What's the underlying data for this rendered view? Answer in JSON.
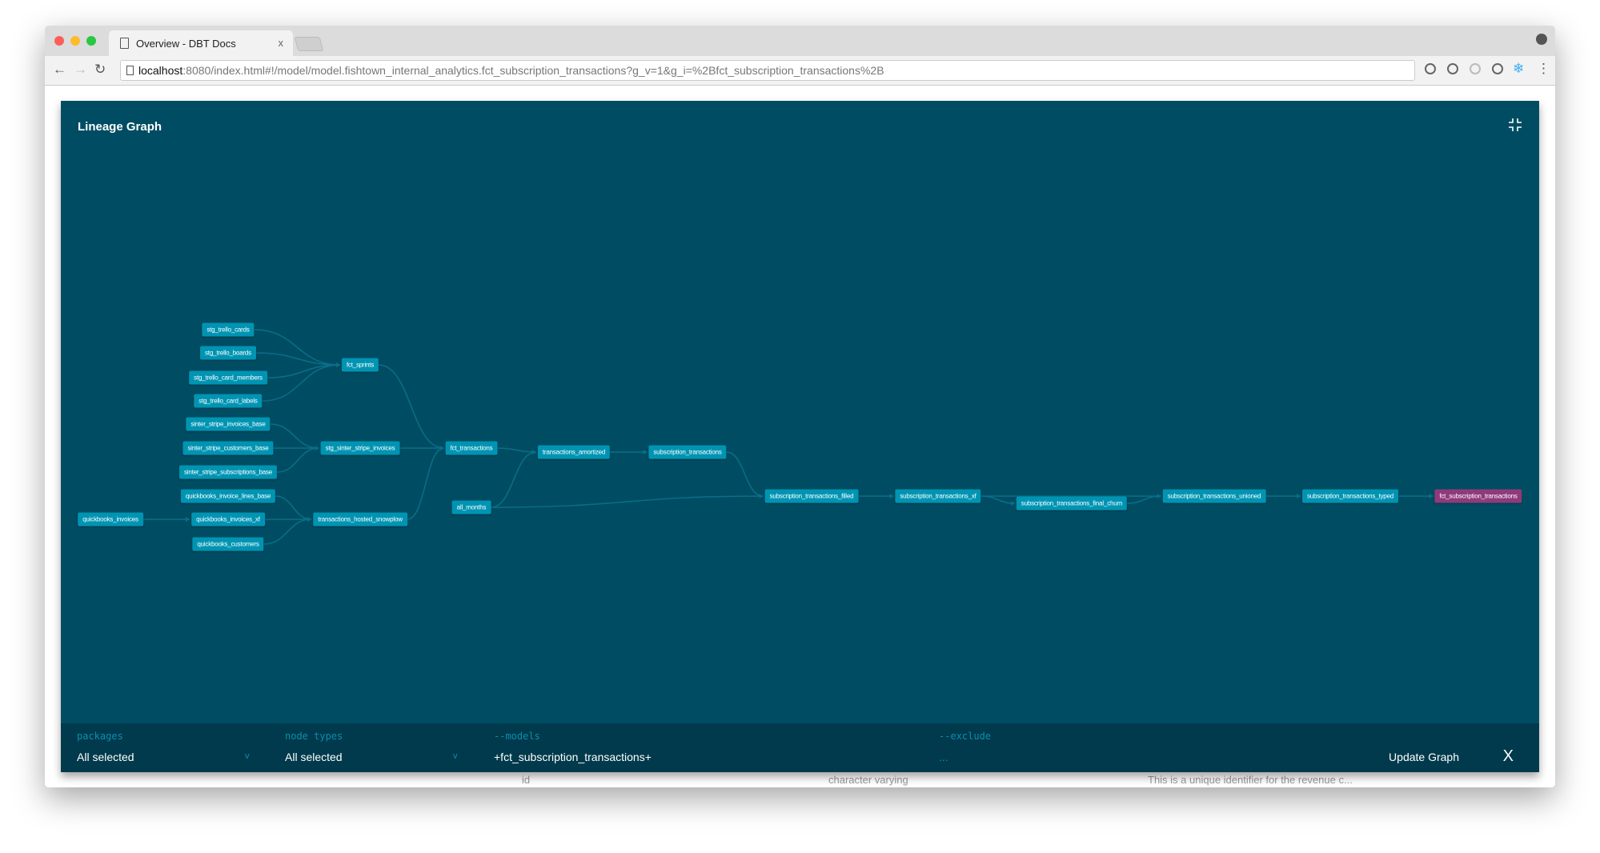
{
  "browser": {
    "tab_title": "Overview - DBT Docs",
    "tab_close": "x",
    "url_host": "localhost",
    "url_rest": ":8080/index.html#!/model/model.fishtown_internal_analytics.fct_subscription_transactions?g_v=1&g_i=%2Bfct_subscription_transactions%2B"
  },
  "background_row": {
    "name": "id",
    "type": "character varying",
    "description": "This is a unique identifier for the revenue c..."
  },
  "modal": {
    "title": "Lineage Graph"
  },
  "graph": {
    "colors": {
      "background": "#004d63",
      "node": "#0094b3",
      "selected_node": "#8f3a7a",
      "edge": "#0b6e88"
    },
    "selected": "fct_subscription_transactions",
    "nodes": [
      "stg_trello_cards",
      "stg_trello_boards",
      "stg_trello_card_members",
      "stg_trello_card_labels",
      "sinter_stripe_invoices_base",
      "sinter_stripe_customers_base",
      "sinter_stripe_subscriptions_base",
      "quickbooks_invoice_lines_base",
      "quickbooks_invoices_xf",
      "quickbooks_customers",
      "quickbooks_invoices",
      "fct_sprints",
      "stg_sinter_stripe_invoices",
      "transactions_hosted_snowplow",
      "fct_transactions",
      "all_months",
      "transactions_amortized",
      "subscription_transactions",
      "subscription_transactions_filled",
      "subscription_transactions_xf",
      "subscription_transactions_final_churn",
      "subscription_transactions_unioned",
      "subscription_transactions_typed",
      "fct_subscription_transactions"
    ],
    "edges": [
      [
        "stg_trello_cards",
        "fct_sprints"
      ],
      [
        "stg_trello_boards",
        "fct_sprints"
      ],
      [
        "stg_trello_card_members",
        "fct_sprints"
      ],
      [
        "stg_trello_card_labels",
        "fct_sprints"
      ],
      [
        "sinter_stripe_invoices_base",
        "stg_sinter_stripe_invoices"
      ],
      [
        "sinter_stripe_customers_base",
        "stg_sinter_stripe_invoices"
      ],
      [
        "sinter_stripe_subscriptions_base",
        "stg_sinter_stripe_invoices"
      ],
      [
        "quickbooks_invoices",
        "quickbooks_invoices_xf"
      ],
      [
        "quickbooks_invoice_lines_base",
        "transactions_hosted_snowplow"
      ],
      [
        "quickbooks_invoices_xf",
        "transactions_hosted_snowplow"
      ],
      [
        "quickbooks_customers",
        "transactions_hosted_snowplow"
      ],
      [
        "fct_sprints",
        "fct_transactions"
      ],
      [
        "stg_sinter_stripe_invoices",
        "fct_transactions"
      ],
      [
        "transactions_hosted_snowplow",
        "fct_transactions"
      ],
      [
        "fct_transactions",
        "transactions_amortized"
      ],
      [
        "all_months",
        "transactions_amortized"
      ],
      [
        "transactions_amortized",
        "subscription_transactions"
      ],
      [
        "subscription_transactions",
        "subscription_transactions_filled"
      ],
      [
        "all_months",
        "subscription_transactions_filled"
      ],
      [
        "subscription_transactions_filled",
        "subscription_transactions_xf"
      ],
      [
        "subscription_transactions_xf",
        "subscription_transactions_final_churn"
      ],
      [
        "subscription_transactions_xf",
        "subscription_transactions_unioned"
      ],
      [
        "subscription_transactions_final_churn",
        "subscription_transactions_unioned"
      ],
      [
        "subscription_transactions_unioned",
        "subscription_transactions_typed"
      ],
      [
        "subscription_transactions_typed",
        "fct_subscription_transactions"
      ]
    ]
  },
  "filters": {
    "packages": {
      "label": "packages",
      "value": "All selected"
    },
    "node_types": {
      "label": "node types",
      "value": "All selected"
    },
    "models": {
      "label": "--models",
      "value": "+fct_subscription_transactions+"
    },
    "exclude": {
      "label": "--exclude",
      "placeholder": "..."
    },
    "chevron": "v",
    "update_label": "Update Graph",
    "close": "X"
  }
}
